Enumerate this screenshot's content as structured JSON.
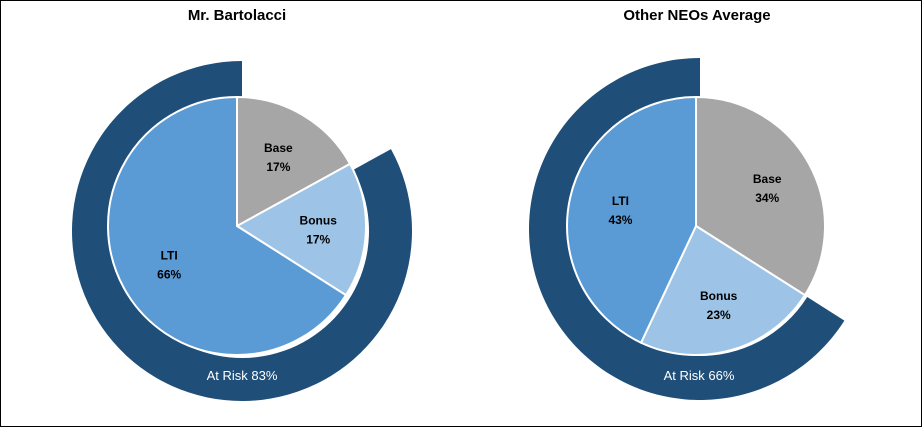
{
  "chart_data": [
    {
      "type": "pie",
      "title": "Mr. Bartolacci",
      "slices": [
        {
          "label": "Base",
          "value": 17,
          "display": "17%",
          "color": "#a6a6a6"
        },
        {
          "label": "Bonus",
          "value": 17,
          "display": "17%",
          "color": "#9dc3e6"
        },
        {
          "label": "LTI",
          "value": 66,
          "display": "66%",
          "color": "#5b9bd5"
        }
      ],
      "outer_ring": {
        "label": "At Risk 83%",
        "value": 83,
        "color": "#1f4e79"
      }
    },
    {
      "type": "pie",
      "title": "Other NEOs Average",
      "slices": [
        {
          "label": "Base",
          "value": 34,
          "display": "34%",
          "color": "#a6a6a6"
        },
        {
          "label": "Bonus",
          "value": 23,
          "display": "23%",
          "color": "#9dc3e6"
        },
        {
          "label": "LTI",
          "value": 43,
          "display": "43%",
          "color": "#5b9bd5"
        }
      ],
      "outer_ring": {
        "label": "At Risk 66%",
        "value": 66,
        "color": "#1f4e79"
      }
    }
  ]
}
